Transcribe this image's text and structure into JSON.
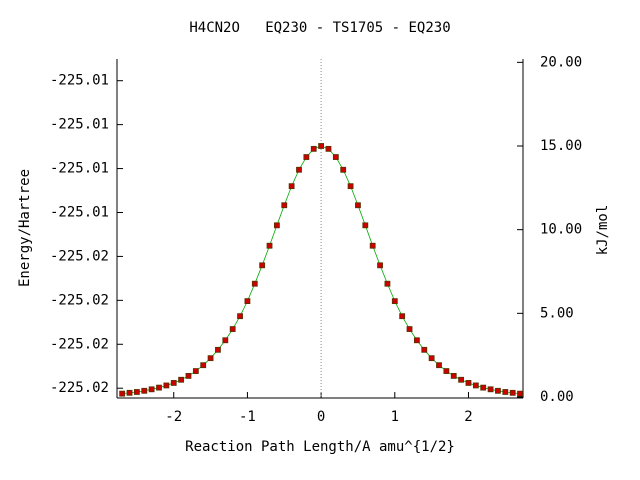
{
  "chart_data": {
    "type": "line",
    "title": "H4CN2O   EQ230 - TS1705 - EQ230",
    "xlabel": "Reaction Path Length/A amu^{1/2}",
    "ylabel": "Energy/Hartree",
    "y2label": "kJ/mol",
    "x": [
      -2.7,
      -2.6,
      -2.5,
      -2.4,
      -2.3,
      -2.2,
      -2.1,
      -2.0,
      -1.9,
      -1.8,
      -1.7,
      -1.6,
      -1.5,
      -1.4,
      -1.3,
      -1.2,
      -1.1,
      -1.0,
      -0.9,
      -0.8,
      -0.7,
      -0.6,
      -0.5,
      -0.4,
      -0.3,
      -0.2,
      -0.1,
      0,
      0.1,
      0.2,
      0.3,
      0.4,
      0.5,
      0.6,
      0.7,
      0.8,
      0.9,
      1.0,
      1.1,
      1.2,
      1.3,
      1.4,
      1.5,
      1.6,
      1.7,
      1.8,
      1.9,
      2.0,
      2.1,
      2.2,
      2.3,
      2.4,
      2.5,
      2.6,
      2.7
    ],
    "series": [
      {
        "color": "#cc0000",
        "line_color": "#00aa00",
        "axis": "y2",
        "values": [
          0.2,
          0.25,
          0.3,
          0.37,
          0.46,
          0.56,
          0.69,
          0.84,
          1.03,
          1.26,
          1.55,
          1.9,
          2.32,
          2.82,
          3.39,
          4.06,
          4.83,
          5.73,
          6.77,
          7.87,
          9.04,
          10.26,
          11.46,
          12.6,
          13.58,
          14.34,
          14.83,
          15.0,
          14.83,
          14.34,
          13.58,
          12.6,
          11.46,
          10.26,
          9.04,
          7.87,
          6.77,
          5.73,
          4.83,
          4.06,
          3.39,
          2.82,
          2.32,
          1.9,
          1.55,
          1.26,
          1.03,
          0.84,
          0.69,
          0.56,
          0.46,
          0.37,
          0.3,
          0.25,
          0.2
        ]
      }
    ],
    "xlim": [
      -2.77,
      2.74
    ],
    "xticks": [
      -2,
      -1,
      0,
      1,
      2
    ],
    "ylim": [
      -225.018723,
      -225.011006
    ],
    "yticks": [
      {
        "value": -225.0185,
        "label": "-225.02"
      },
      {
        "value": -225.0175,
        "label": "-225.02"
      },
      {
        "value": -225.0165,
        "label": "-225.02"
      },
      {
        "value": -225.0155,
        "label": "-225.02"
      },
      {
        "value": -225.0145,
        "label": "-225.01"
      },
      {
        "value": -225.0135,
        "label": "-225.01"
      },
      {
        "value": -225.0125,
        "label": "-225.01"
      },
      {
        "value": -225.0115,
        "label": "-225.01"
      }
    ],
    "y2lim": [
      -0.06,
      20.2
    ],
    "y2ticks": [
      {
        "value": 0,
        "label": "0.00"
      },
      {
        "value": 5,
        "label": "5.00"
      },
      {
        "value": 10,
        "label": "10.00"
      },
      {
        "value": 15,
        "label": "15.00"
      },
      {
        "value": 20,
        "label": "20.00"
      }
    ],
    "reference_line_x": 0
  }
}
